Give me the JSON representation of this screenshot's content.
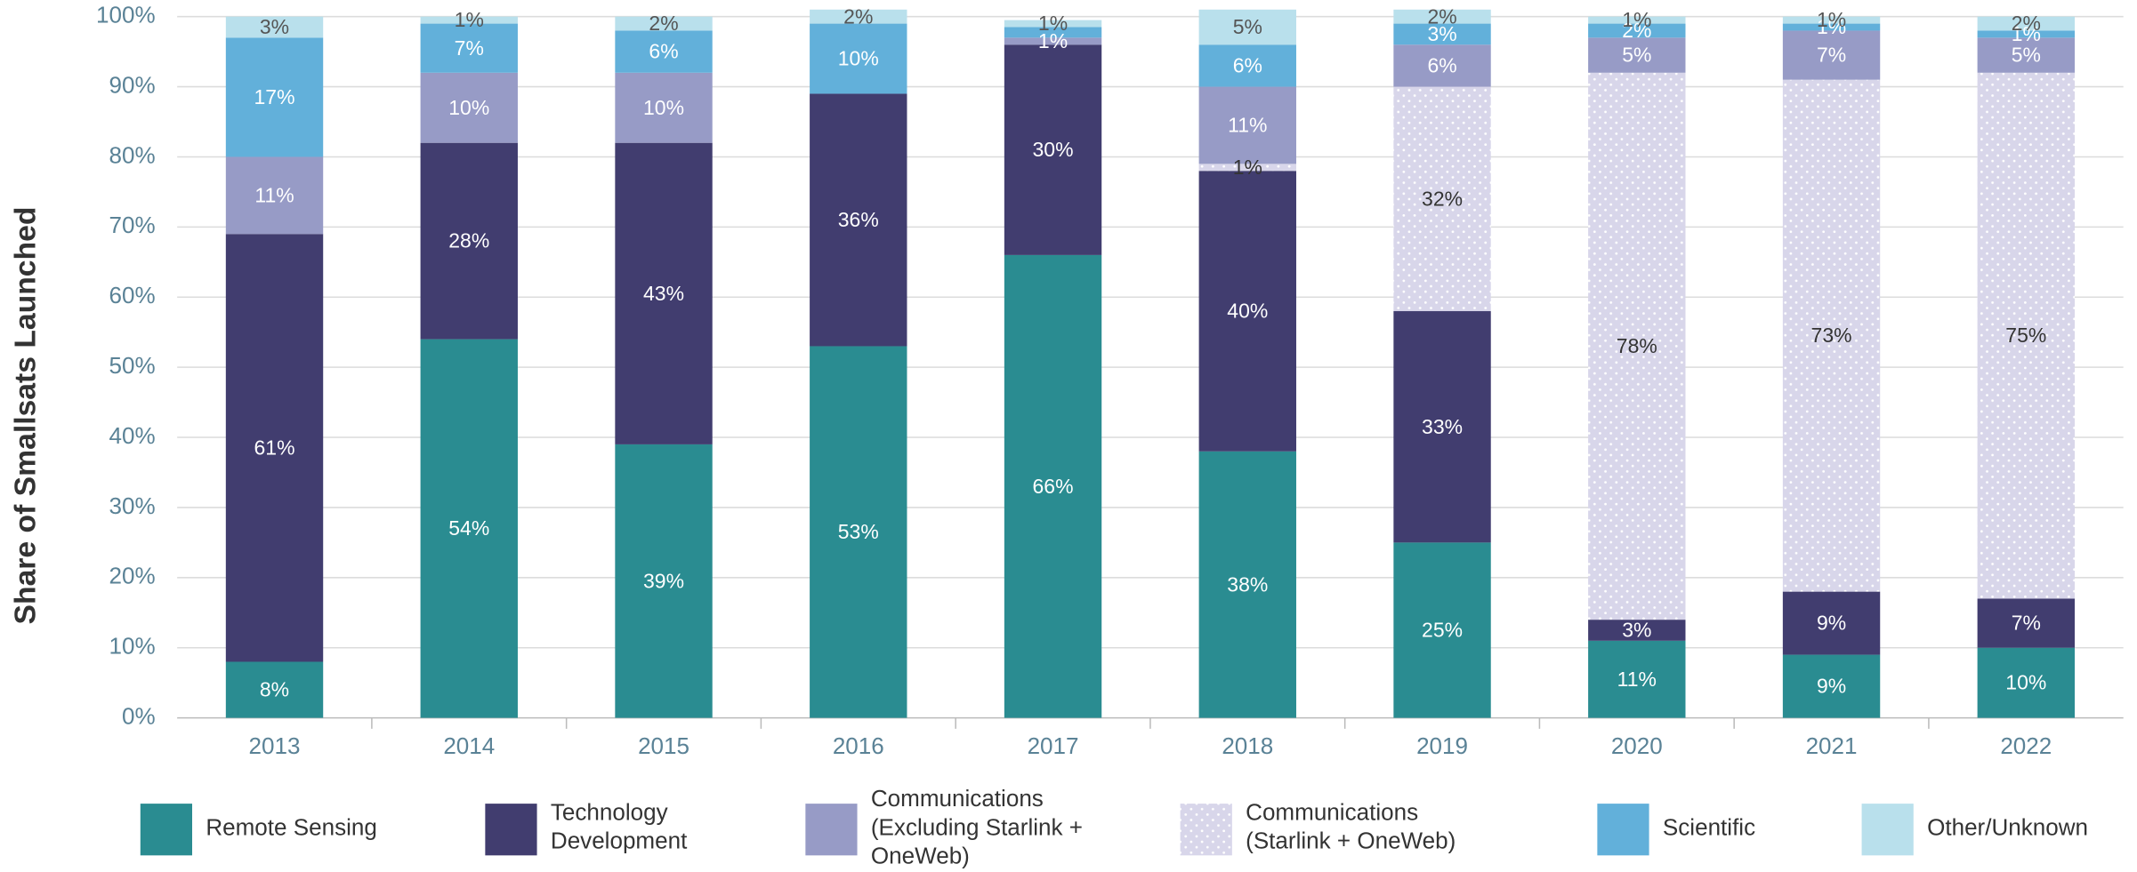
{
  "chart_data": {
    "type": "stacked_bar",
    "y_label": "Share of Smallsats Launched",
    "categories": [
      "2013",
      "2014",
      "2015",
      "2016",
      "2017",
      "2018",
      "2019",
      "2020",
      "2021",
      "2022"
    ],
    "ylim": [
      0,
      100
    ],
    "yticks": [
      {
        "value": 0,
        "label": "0%"
      },
      {
        "value": 10,
        "label": "10%"
      },
      {
        "value": 20,
        "label": "20%"
      },
      {
        "value": 30,
        "label": "30%"
      },
      {
        "value": 40,
        "label": "40%"
      },
      {
        "value": 50,
        "label": "50%"
      },
      {
        "value": 60,
        "label": "60%"
      },
      {
        "value": 70,
        "label": "70%"
      },
      {
        "value": 80,
        "label": "80%"
      },
      {
        "value": 90,
        "label": "90%"
      },
      {
        "value": 100,
        "label": "100%"
      }
    ],
    "grid": true,
    "series": [
      {
        "name": "Remote Sensing",
        "color": "#2a8c91",
        "label_color": "#ffffff",
        "values": [
          8,
          54,
          39,
          53,
          66,
          38,
          25,
          11,
          9,
          10
        ],
        "value_labels": [
          "8%",
          "54%",
          "39%",
          "53%",
          "66%",
          "38%",
          "25%",
          "11%",
          "9%",
          "10%"
        ]
      },
      {
        "name": "Technology\nDevelopment",
        "color": "#413d6f",
        "label_color": "#ffffff",
        "values": [
          61,
          28,
          43,
          36,
          30,
          40,
          33,
          3,
          9,
          7
        ],
        "value_labels": [
          "61%",
          "28%",
          "43%",
          "36%",
          "30%",
          "40%",
          "33%",
          "3%",
          "9%",
          "7%"
        ]
      },
      {
        "name": "Communications\n(Excluding Starlink +\nOneWeb)",
        "color": "#979bc6",
        "label_color": "#ffffff",
        "values": [
          11,
          10,
          10,
          0,
          1,
          11,
          6,
          5,
          7,
          5
        ],
        "value_labels": [
          "11%",
          "10%",
          "10%",
          null,
          "1%",
          "11%",
          "6%",
          "5%",
          "7%",
          "5%"
        ]
      },
      {
        "name": "Communications\n(Starlink + OneWeb)",
        "color": "#d8d6ea",
        "pattern": "dots",
        "label_color": "#333333",
        "values": [
          0,
          0,
          0,
          0,
          0,
          1,
          32,
          78,
          73,
          75
        ],
        "value_labels": [
          null,
          null,
          null,
          null,
          null,
          "1%",
          "32%",
          "78%",
          "73%",
          "75%"
        ]
      },
      {
        "name": "Scientific",
        "color": "#62b0da",
        "label_color": "#ffffff",
        "values": [
          17,
          7,
          6,
          10,
          1.5,
          6,
          3,
          2,
          1,
          1
        ],
        "value_labels": [
          "17%",
          "7%",
          "6%",
          "10%",
          null,
          "6%",
          "3%",
          "2%",
          "1%",
          "1%"
        ]
      },
      {
        "name": "Other/Unknown",
        "color": "#b9e0ec",
        "label_color": "#555555",
        "values": [
          3,
          1,
          2,
          2,
          1,
          5,
          2,
          1,
          1,
          2
        ],
        "value_labels": [
          "3%",
          "1%",
          "2%",
          "2%",
          "1%",
          "5%",
          "2%",
          "1%",
          "1%",
          "2%"
        ]
      }
    ]
  }
}
